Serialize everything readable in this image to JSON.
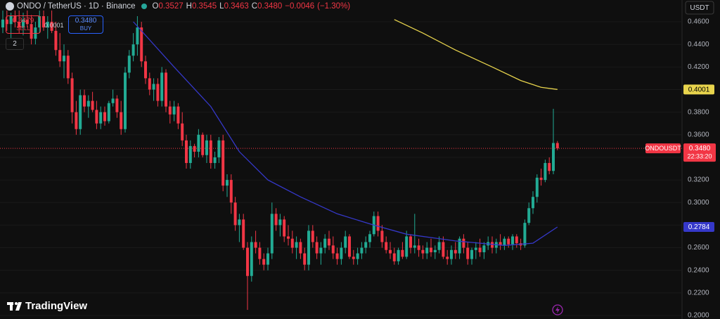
{
  "chart_data": {
    "type": "candlestick",
    "header": {
      "symbol": "ONDO / TetherUS · 1D · Binance",
      "ohlc": [
        {
          "name": "O",
          "value": 0.3527
        },
        {
          "name": "H",
          "value": 0.3545
        },
        {
          "name": "L",
          "value": 0.3463
        },
        {
          "name": "C",
          "value": {
            "value": 0.348,
            "label": "0.3480"
          }
        }
      ],
      "change": {
        "value": -0.0046,
        "label": "−0.0046"
      },
      "change_pct": {
        "value": -1.3,
        "label": "(−1.30%)"
      }
    },
    "sell": {
      "label": "SELL",
      "price": 0.3479
    },
    "buy": {
      "label": "BUY",
      "price": {
        "value": 0.348,
        "label": "0.3480"
      }
    },
    "spread": 0.0001,
    "indicators_toggle": "2",
    "currency": "USDT",
    "watermark": "TradingView",
    "colors": {
      "up": "#22ab94",
      "down": "#f23645"
    },
    "grid": true,
    "open": [
      0.455,
      0.462,
      0.458,
      0.465,
      0.46,
      0.455,
      0.462,
      0.458,
      0.445,
      0.455,
      0.465,
      0.455,
      0.46,
      0.452,
      0.435,
      0.425,
      0.43,
      0.41,
      0.38,
      0.365,
      0.395,
      0.385,
      0.39,
      0.382,
      0.37,
      0.38,
      0.372,
      0.388,
      0.392,
      0.38,
      0.365,
      0.415,
      0.43,
      0.44,
      0.455,
      0.425,
      0.41,
      0.4,
      0.405,
      0.39,
      0.415,
      0.385,
      0.378,
      0.385,
      0.37,
      0.355,
      0.335,
      0.35,
      0.345,
      0.36,
      0.342,
      0.355,
      0.335,
      0.34,
      0.355,
      0.315,
      0.32,
      0.3,
      0.28,
      0.285,
      0.26,
      0.235,
      0.265,
      0.26,
      0.25,
      0.245,
      0.255,
      0.29,
      0.28,
      0.285,
      0.27,
      0.268,
      0.26,
      0.265,
      0.255,
      0.245,
      0.275,
      0.265,
      0.255,
      0.26,
      0.268,
      0.262,
      0.255,
      0.25,
      0.26,
      0.27,
      0.252,
      0.25,
      0.255,
      0.26,
      0.265,
      0.272,
      0.288,
      0.275,
      0.265,
      0.258,
      0.255,
      0.248,
      0.258,
      0.252,
      0.27,
      0.26,
      0.262,
      0.258,
      0.255,
      0.26,
      0.256,
      0.258,
      0.265,
      0.252,
      0.25,
      0.258,
      0.255,
      0.268,
      0.26,
      0.25,
      0.258,
      0.26,
      0.256,
      0.262,
      0.265,
      0.26,
      0.265,
      0.262,
      0.268,
      0.263,
      0.27,
      0.264,
      0.262,
      0.282,
      0.295,
      0.305,
      0.322,
      0.32,
      0.335,
      0.328,
      0.3527
    ],
    "high": [
      0.47,
      0.47,
      0.468,
      0.47,
      0.47,
      0.468,
      0.47,
      0.466,
      0.46,
      0.47,
      0.47,
      0.465,
      0.47,
      0.46,
      0.45,
      0.44,
      0.435,
      0.415,
      0.39,
      0.4,
      0.4,
      0.395,
      0.398,
      0.39,
      0.385,
      0.385,
      0.39,
      0.4,
      0.395,
      0.39,
      0.42,
      0.435,
      0.45,
      0.465,
      0.46,
      0.43,
      0.415,
      0.41,
      0.41,
      0.42,
      0.418,
      0.39,
      0.39,
      0.388,
      0.38,
      0.36,
      0.355,
      0.352,
      0.365,
      0.362,
      0.36,
      0.36,
      0.345,
      0.358,
      0.36,
      0.325,
      0.325,
      0.305,
      0.29,
      0.29,
      0.265,
      0.27,
      0.275,
      0.265,
      0.255,
      0.26,
      0.3,
      0.295,
      0.29,
      0.288,
      0.28,
      0.275,
      0.27,
      0.268,
      0.26,
      0.28,
      0.28,
      0.27,
      0.265,
      0.272,
      0.275,
      0.27,
      0.26,
      0.265,
      0.275,
      0.272,
      0.258,
      0.26,
      0.265,
      0.27,
      0.275,
      0.292,
      0.292,
      0.28,
      0.27,
      0.265,
      0.26,
      0.26,
      0.265,
      0.275,
      0.272,
      0.29,
      0.268,
      0.262,
      0.265,
      0.268,
      0.262,
      0.27,
      0.27,
      0.258,
      0.262,
      0.265,
      0.27,
      0.272,
      0.265,
      0.26,
      0.265,
      0.268,
      0.265,
      0.27,
      0.27,
      0.268,
      0.272,
      0.27,
      0.27,
      0.272,
      0.272,
      0.268,
      0.285,
      0.3,
      0.31,
      0.325,
      0.33,
      0.338,
      0.34,
      0.383,
      0.3545
    ],
    "low": [
      0.45,
      0.452,
      0.445,
      0.455,
      0.45,
      0.448,
      0.455,
      0.44,
      0.44,
      0.45,
      0.452,
      0.445,
      0.45,
      0.43,
      0.42,
      0.41,
      0.405,
      0.37,
      0.36,
      0.36,
      0.38,
      0.375,
      0.38,
      0.365,
      0.365,
      0.368,
      0.37,
      0.385,
      0.375,
      0.36,
      0.362,
      0.41,
      0.425,
      0.43,
      0.42,
      0.405,
      0.395,
      0.39,
      0.385,
      0.385,
      0.38,
      0.37,
      0.372,
      0.365,
      0.35,
      0.33,
      0.33,
      0.34,
      0.34,
      0.34,
      0.335,
      0.33,
      0.33,
      0.335,
      0.31,
      0.305,
      0.29,
      0.275,
      0.265,
      0.258,
      0.205,
      0.23,
      0.255,
      0.245,
      0.24,
      0.24,
      0.25,
      0.275,
      0.27,
      0.265,
      0.262,
      0.255,
      0.25,
      0.25,
      0.24,
      0.24,
      0.26,
      0.25,
      0.245,
      0.255,
      0.258,
      0.25,
      0.245,
      0.245,
      0.255,
      0.25,
      0.245,
      0.245,
      0.25,
      0.255,
      0.26,
      0.27,
      0.27,
      0.26,
      0.255,
      0.25,
      0.245,
      0.245,
      0.25,
      0.25,
      0.255,
      0.255,
      0.252,
      0.25,
      0.25,
      0.252,
      0.25,
      0.255,
      0.25,
      0.245,
      0.245,
      0.25,
      0.25,
      0.255,
      0.245,
      0.245,
      0.25,
      0.252,
      0.25,
      0.258,
      0.255,
      0.255,
      0.258,
      0.258,
      0.26,
      0.258,
      0.26,
      0.258,
      0.26,
      0.28,
      0.29,
      0.3,
      0.315,
      0.318,
      0.325,
      0.325,
      0.3463
    ],
    "close": [
      0.462,
      0.458,
      0.465,
      0.46,
      0.455,
      0.462,
      0.458,
      0.445,
      0.455,
      0.465,
      0.455,
      0.46,
      0.452,
      0.435,
      0.425,
      0.43,
      0.41,
      0.38,
      0.365,
      0.395,
      0.385,
      0.39,
      0.382,
      0.37,
      0.38,
      0.372,
      0.388,
      0.392,
      0.38,
      0.365,
      0.415,
      0.43,
      0.44,
      0.455,
      0.425,
      0.41,
      0.4,
      0.405,
      0.39,
      0.415,
      0.385,
      0.378,
      0.385,
      0.37,
      0.355,
      0.335,
      0.35,
      0.345,
      0.36,
      0.342,
      0.355,
      0.335,
      0.34,
      0.355,
      0.315,
      0.32,
      0.3,
      0.28,
      0.285,
      0.26,
      0.235,
      0.265,
      0.26,
      0.25,
      0.245,
      0.255,
      0.29,
      0.28,
      0.285,
      0.27,
      0.268,
      0.26,
      0.265,
      0.255,
      0.245,
      0.275,
      0.265,
      0.255,
      0.26,
      0.268,
      0.262,
      0.255,
      0.25,
      0.26,
      0.27,
      0.252,
      0.25,
      0.255,
      0.26,
      0.265,
      0.272,
      0.288,
      0.275,
      0.265,
      0.258,
      0.255,
      0.248,
      0.258,
      0.252,
      0.27,
      0.26,
      0.262,
      0.258,
      0.255,
      0.26,
      0.256,
      0.258,
      0.265,
      0.252,
      0.25,
      0.258,
      0.255,
      0.268,
      0.26,
      0.25,
      0.258,
      0.26,
      0.256,
      0.262,
      0.265,
      0.26,
      0.265,
      0.262,
      0.268,
      0.263,
      0.27,
      0.264,
      0.262,
      0.282,
      0.295,
      0.305,
      0.322,
      0.32,
      0.335,
      0.328,
      0.3527,
      0.348
    ],
    "lines": [
      {
        "color": "#3538c9",
        "x": [
          32,
          42,
          51,
          58,
          65,
          73,
          82,
          91,
          99,
          111,
          123,
          130,
          136
        ],
        "values": [
          0.46,
          0.42,
          0.385,
          0.345,
          0.32,
          0.305,
          0.29,
          0.28,
          0.272,
          0.266,
          0.262,
          0.264,
          0.2784
        ],
        "tag": 0.2784
      },
      {
        "color": "#e8d44d",
        "x": [
          96,
          103,
          111,
          120,
          127,
          132,
          136
        ],
        "values": [
          0.462,
          0.45,
          0.435,
          0.42,
          0.408,
          0.402,
          0.4001
        ],
        "tag": 0.4001
      }
    ],
    "last_price": {
      "symbol": "ONDOUSDT",
      "price": {
        "value": 0.348,
        "label": "0.3480"
      },
      "countdown": "22:33:20"
    },
    "ylim": [
      0.1969,
      0.4793
    ],
    "yticks": [
      {
        "value": 0.46,
        "label": "0.4600"
      },
      {
        "value": 0.44,
        "label": "0.4400"
      },
      {
        "value": 0.42,
        "label": "0.4200"
      },
      {
        "value": 0.4,
        "label": "0.4000"
      },
      {
        "value": 0.38,
        "label": "0.3800"
      },
      {
        "value": 0.36,
        "label": "0.3600"
      },
      {
        "value": 0.34,
        "label": "0.3400"
      },
      {
        "value": 0.32,
        "label": "0.3200"
      },
      {
        "value": 0.3,
        "label": "0.3000"
      },
      {
        "value": 0.28,
        "label": "0.2800"
      },
      {
        "value": 0.26,
        "label": "0.2600"
      },
      {
        "value": 0.24,
        "label": "0.2400"
      },
      {
        "value": 0.22,
        "label": "0.2200"
      },
      {
        "value": 0.2,
        "label": "0.2000"
      }
    ]
  }
}
